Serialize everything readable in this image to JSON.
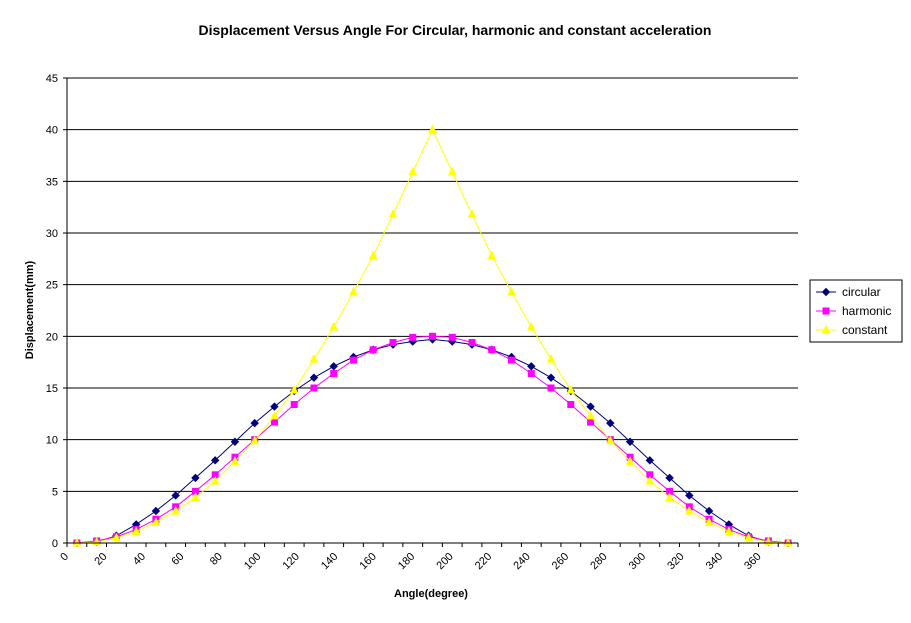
{
  "chart_data": {
    "type": "line",
    "title": "Displacement Versus Angle For Circular, harmonic and constant acceleration",
    "xlabel": "Angle(degree)",
    "ylabel": "Displacement(mm)",
    "ylim": [
      0,
      45
    ],
    "yticks": [
      "0",
      "5",
      "10",
      "15",
      "20",
      "25",
      "30",
      "35",
      "40",
      "45"
    ],
    "xticks": [
      "0",
      "20",
      "40",
      "60",
      "80",
      "100",
      "120",
      "140",
      "160",
      "180",
      "200",
      "220",
      "240",
      "260",
      "280",
      "300",
      "320",
      "340",
      "360"
    ],
    "grid": "horizontal",
    "legend_position": "right",
    "x": [
      0,
      10,
      20,
      30,
      40,
      50,
      60,
      70,
      80,
      90,
      100,
      110,
      120,
      130,
      140,
      150,
      160,
      170,
      180,
      190,
      200,
      210,
      220,
      230,
      240,
      250,
      260,
      270,
      280,
      290,
      300,
      310,
      320,
      330,
      340,
      350,
      360
    ],
    "series": [
      {
        "name": "circular",
        "color": "#000080",
        "marker": "diamond",
        "values": [
          0,
          0.1,
          0.7,
          1.8,
          3.1,
          4.6,
          6.3,
          8.0,
          9.8,
          11.6,
          13.2,
          14.7,
          16.0,
          17.1,
          18.0,
          18.7,
          19.2,
          19.5,
          19.7,
          19.5,
          19.2,
          18.7,
          18.0,
          17.1,
          16.0,
          14.7,
          13.2,
          11.6,
          9.8,
          8.0,
          6.3,
          4.6,
          3.1,
          1.8,
          0.7,
          0.1,
          0
        ]
      },
      {
        "name": "harmonic",
        "color": "#ff00ff",
        "marker": "square",
        "values": [
          0,
          0.2,
          0.6,
          1.3,
          2.3,
          3.5,
          5.0,
          6.6,
          8.3,
          10.0,
          11.7,
          13.4,
          15.0,
          16.4,
          17.7,
          18.7,
          19.4,
          19.9,
          20.0,
          19.9,
          19.4,
          18.7,
          17.7,
          16.4,
          15.0,
          13.4,
          11.7,
          10.0,
          8.3,
          6.6,
          5.0,
          3.5,
          2.3,
          1.3,
          0.6,
          0.2,
          0
        ]
      },
      {
        "name": "constant",
        "color": "#ffff00",
        "marker": "triangle",
        "values": [
          0,
          0.1,
          0.5,
          1.1,
          2.0,
          3.1,
          4.4,
          6.0,
          7.9,
          9.9,
          12.3,
          14.8,
          17.8,
          20.9,
          24.3,
          27.8,
          31.8,
          35.9,
          40.0,
          35.9,
          31.8,
          27.8,
          24.3,
          20.9,
          17.8,
          14.8,
          12.3,
          9.9,
          7.9,
          6.0,
          4.4,
          3.1,
          2.0,
          1.1,
          0.5,
          0.1,
          0
        ]
      }
    ]
  }
}
